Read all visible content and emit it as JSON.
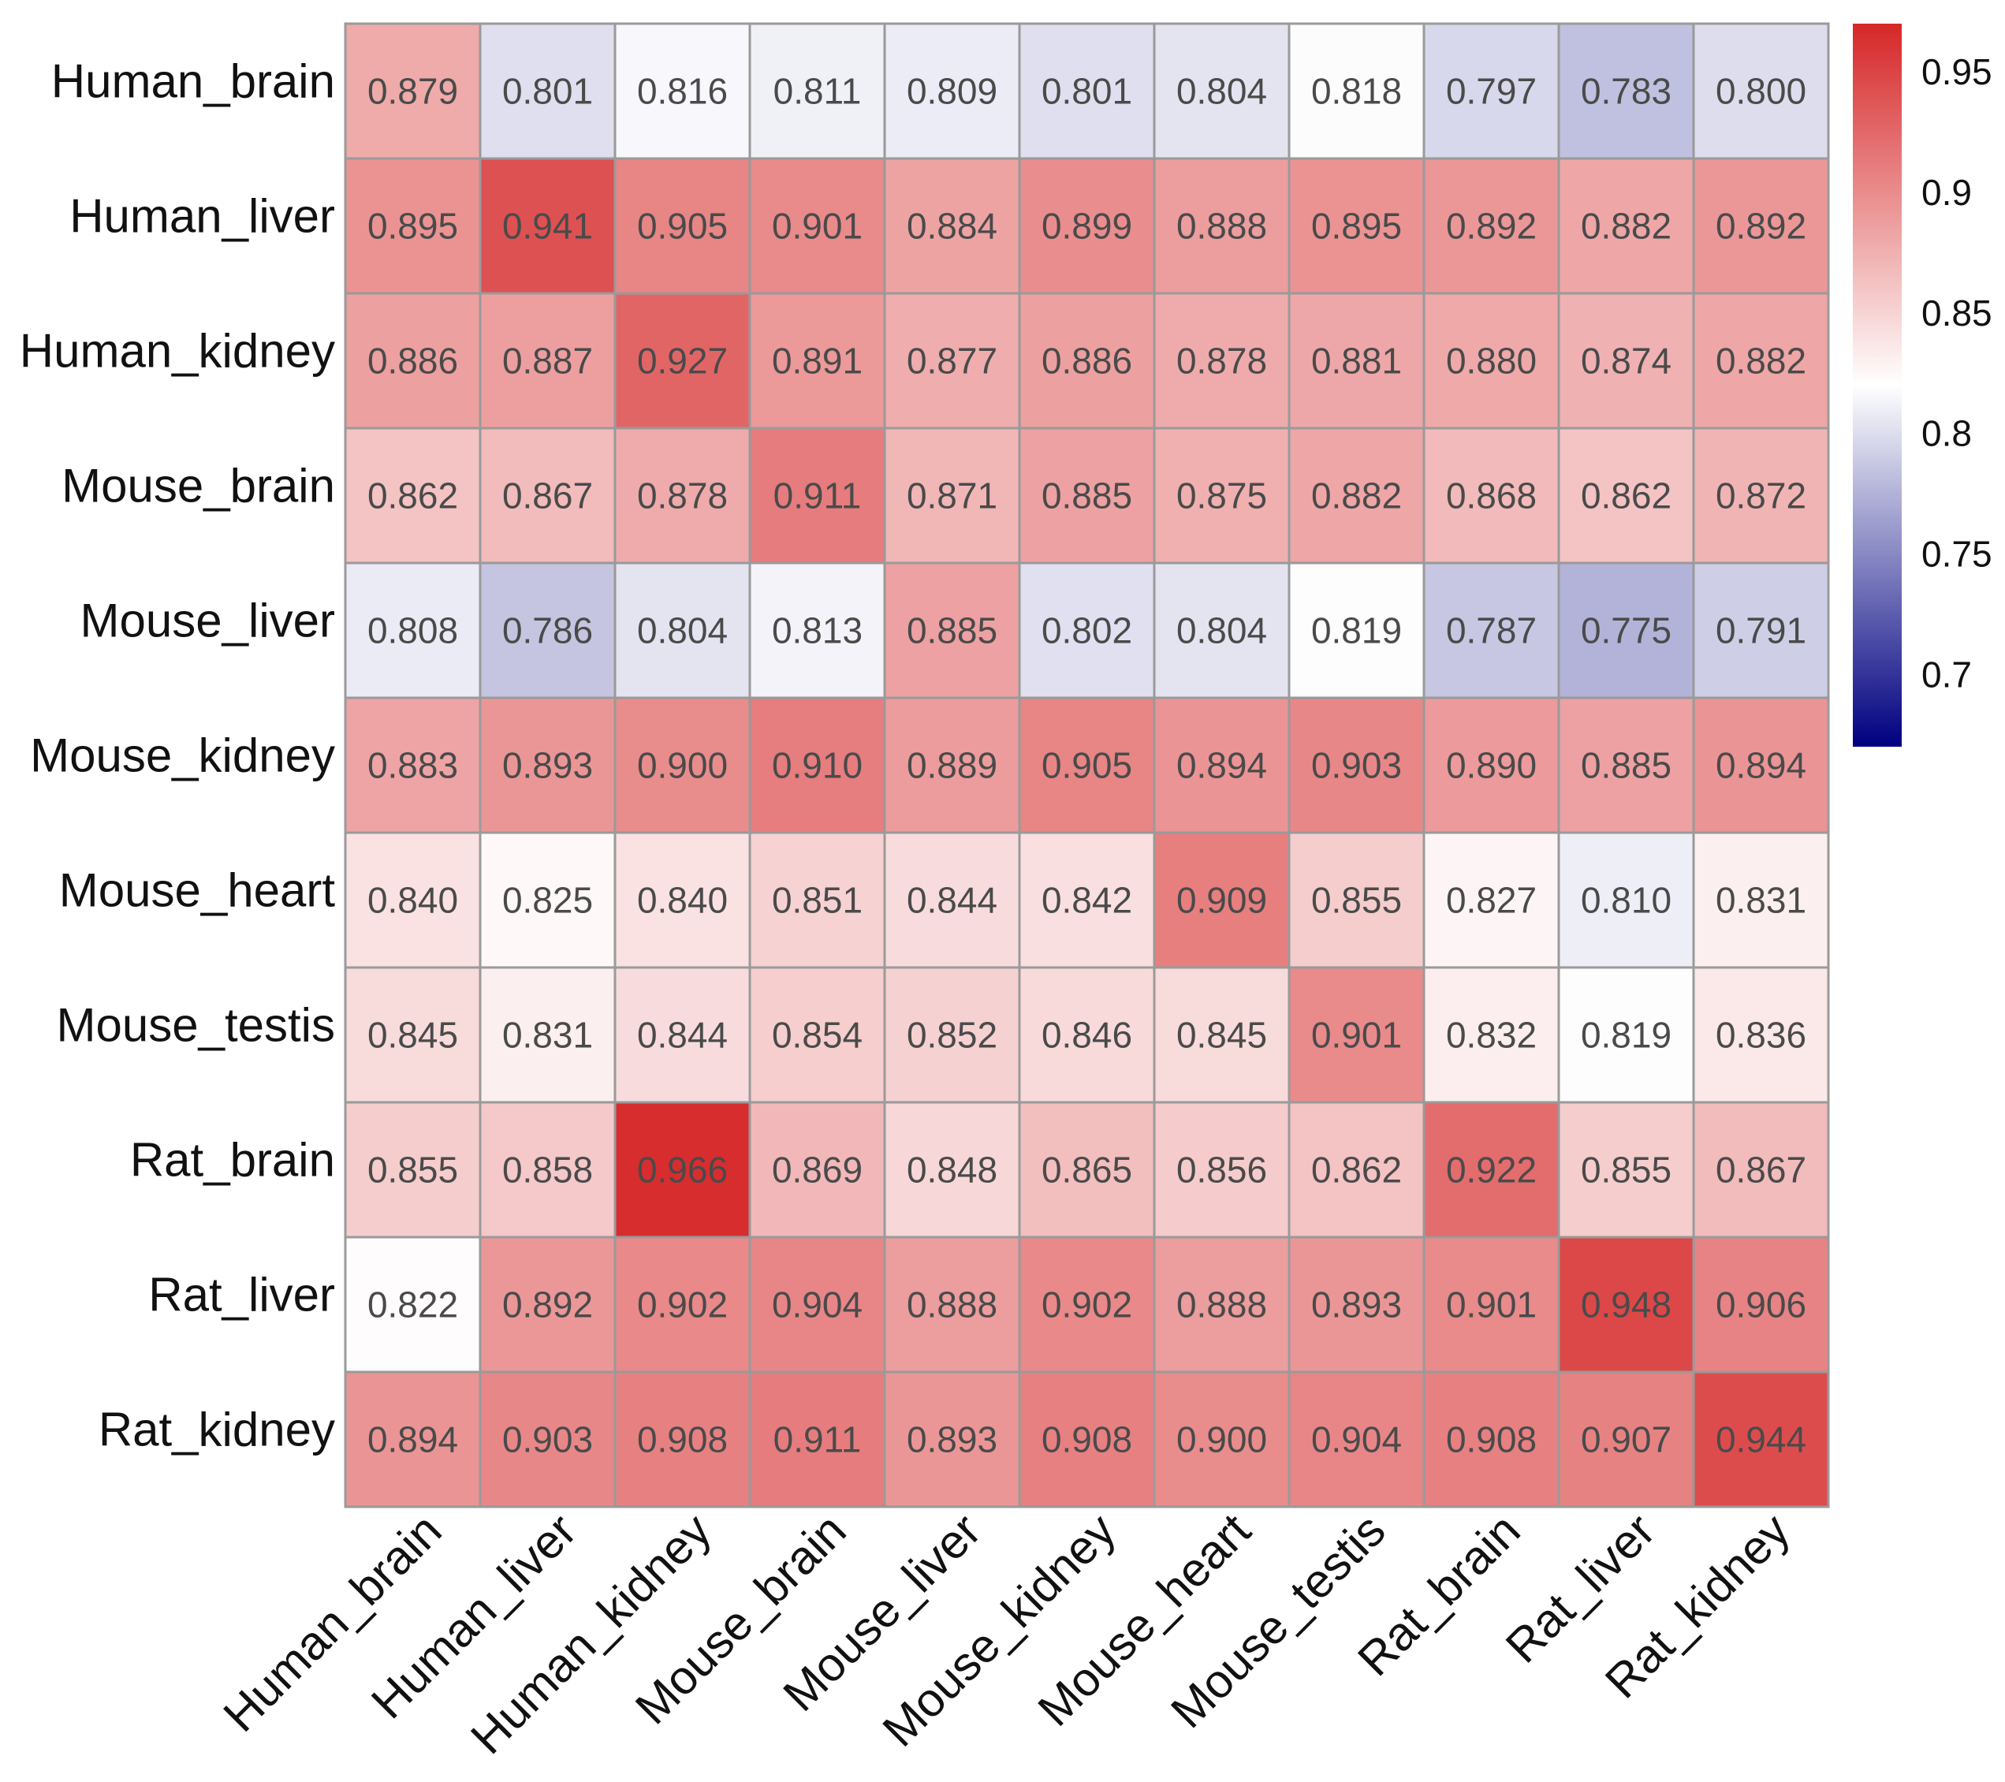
{
  "chart_data": {
    "type": "heatmap",
    "title": "",
    "xlabel": "",
    "ylabel": "",
    "rows": [
      "Human_brain",
      "Human_liver",
      "Human_kidney",
      "Mouse_brain",
      "Mouse_liver",
      "Mouse_kidney",
      "Mouse_heart",
      "Mouse_testis",
      "Rat_brain",
      "Rat_liver",
      "Rat_kidney"
    ],
    "columns": [
      "Human_brain",
      "Human_liver",
      "Human_kidney",
      "Mouse_brain",
      "Mouse_liver",
      "Mouse_kidney",
      "Mouse_heart",
      "Mouse_testis",
      "Rat_brain",
      "Rat_liver",
      "Rat_kidney"
    ],
    "values": [
      [
        "0.879",
        "0.801",
        "0.816",
        "0.811",
        "0.809",
        "0.801",
        "0.804",
        "0.818",
        "0.797",
        "0.783",
        "0.800"
      ],
      [
        "0.895",
        "0.941",
        "0.905",
        "0.901",
        "0.884",
        "0.899",
        "0.888",
        "0.895",
        "0.892",
        "0.882",
        "0.892"
      ],
      [
        "0.886",
        "0.887",
        "0.927",
        "0.891",
        "0.877",
        "0.886",
        "0.878",
        "0.881",
        "0.880",
        "0.874",
        "0.882"
      ],
      [
        "0.862",
        "0.867",
        "0.878",
        "0.911",
        "0.871",
        "0.885",
        "0.875",
        "0.882",
        "0.868",
        "0.862",
        "0.872"
      ],
      [
        "0.808",
        "0.786",
        "0.804",
        "0.813",
        "0.885",
        "0.802",
        "0.804",
        "0.819",
        "0.787",
        "0.775",
        "0.791"
      ],
      [
        "0.883",
        "0.893",
        "0.900",
        "0.910",
        "0.889",
        "0.905",
        "0.894",
        "0.903",
        "0.890",
        "0.885",
        "0.894"
      ],
      [
        "0.840",
        "0.825",
        "0.840",
        "0.851",
        "0.844",
        "0.842",
        "0.909",
        "0.855",
        "0.827",
        "0.810",
        "0.831"
      ],
      [
        "0.845",
        "0.831",
        "0.844",
        "0.854",
        "0.852",
        "0.846",
        "0.845",
        "0.901",
        "0.832",
        "0.819",
        "0.836"
      ],
      [
        "0.855",
        "0.858",
        "0.966",
        "0.869",
        "0.848",
        "0.865",
        "0.856",
        "0.862",
        "0.922",
        "0.855",
        "0.867"
      ],
      [
        "0.822",
        "0.892",
        "0.902",
        "0.904",
        "0.888",
        "0.902",
        "0.888",
        "0.893",
        "0.901",
        "0.948",
        "0.906"
      ],
      [
        "0.894",
        "0.903",
        "0.908",
        "0.911",
        "0.893",
        "0.908",
        "0.900",
        "0.904",
        "0.908",
        "0.907",
        "0.944"
      ]
    ],
    "colorbar": {
      "range": [
        0.67,
        0.97
      ],
      "midpoint": 0.82,
      "ticks": [
        "0.95",
        "0.9",
        "0.85",
        "0.8",
        "0.75",
        "0.7"
      ],
      "low_color": "#000080",
      "mid_color": "#ffffff",
      "high_color": "#d62728"
    },
    "colors": {
      "grid_line": "#9a9a9a",
      "value_text": "#4a4a4a",
      "label_text": "#111111"
    }
  }
}
